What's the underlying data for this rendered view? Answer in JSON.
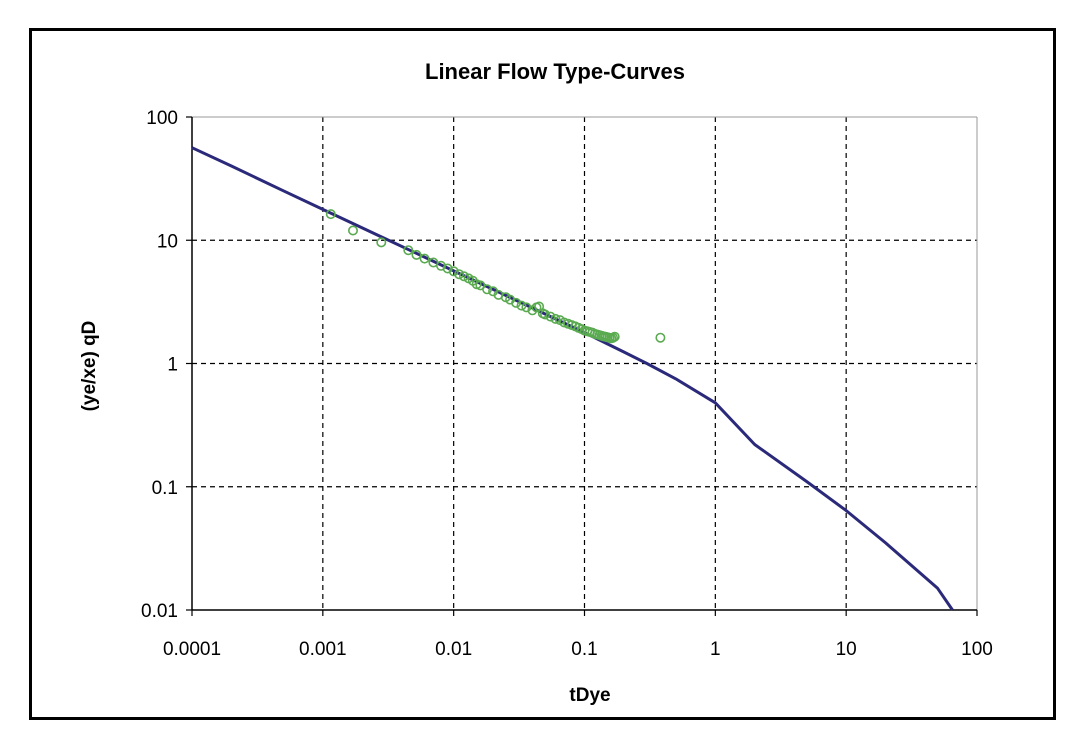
{
  "chart_data": {
    "type": "scatter",
    "title": "Linear Flow Type-Curves",
    "xlabel": "tDye",
    "ylabel": "(ye/xe) qD",
    "x_scale": "log",
    "y_scale": "log",
    "xlim": [
      0.0001,
      100
    ],
    "ylim": [
      0.01,
      100
    ],
    "x_ticks": [
      "0.0001",
      "0.001",
      "0.01",
      "0.1",
      "1",
      "10",
      "100"
    ],
    "y_ticks": [
      "0.01",
      "0.1",
      "1",
      "10",
      "100"
    ],
    "grid": true,
    "legend": "none",
    "colors": {
      "curve": "#2b2a7a",
      "points": "#5aaa50",
      "grid": "#000000"
    },
    "series": [
      {
        "kind": "line",
        "x": [
          0.0001,
          0.0002,
          0.0005,
          0.001,
          0.002,
          0.005,
          0.01,
          0.02,
          0.05,
          0.1,
          0.2,
          0.3,
          0.5,
          1,
          2,
          5,
          10,
          20,
          50,
          65
        ],
        "y": [
          56.4,
          40,
          25.2,
          17.8,
          12.6,
          7.98,
          5.64,
          3.99,
          2.52,
          1.78,
          1.24,
          1.0,
          0.75,
          0.48,
          0.22,
          0.11,
          0.064,
          0.035,
          0.015,
          0.01
        ]
      },
      {
        "kind": "markers",
        "x": [
          0.00115,
          0.0017,
          0.0028,
          0.0045,
          0.0052,
          0.006,
          0.007,
          0.008,
          0.009,
          0.01,
          0.011,
          0.012,
          0.013,
          0.014,
          0.015,
          0.016,
          0.018,
          0.02,
          0.022,
          0.025,
          0.027,
          0.03,
          0.033,
          0.036,
          0.04,
          0.043,
          0.045,
          0.048,
          0.05,
          0.055,
          0.06,
          0.065,
          0.07,
          0.075,
          0.08,
          0.085,
          0.09,
          0.095,
          0.1,
          0.105,
          0.11,
          0.115,
          0.12,
          0.125,
          0.13,
          0.135,
          0.14,
          0.145,
          0.15,
          0.155,
          0.16,
          0.165,
          0.17,
          0.38
        ],
        "y": [
          16.3,
          12.0,
          9.6,
          8.3,
          7.6,
          7.1,
          6.6,
          6.2,
          5.9,
          5.6,
          5.3,
          5.1,
          4.9,
          4.7,
          4.4,
          4.3,
          4.0,
          3.85,
          3.6,
          3.45,
          3.3,
          3.1,
          2.95,
          2.85,
          2.7,
          2.85,
          2.9,
          2.55,
          2.5,
          2.4,
          2.3,
          2.25,
          2.15,
          2.1,
          2.05,
          2.0,
          1.95,
          1.9,
          1.85,
          1.83,
          1.8,
          1.78,
          1.74,
          1.72,
          1.7,
          1.68,
          1.66,
          1.65,
          1.63,
          1.62,
          1.6,
          1.62,
          1.65,
          1.62
        ]
      }
    ]
  }
}
